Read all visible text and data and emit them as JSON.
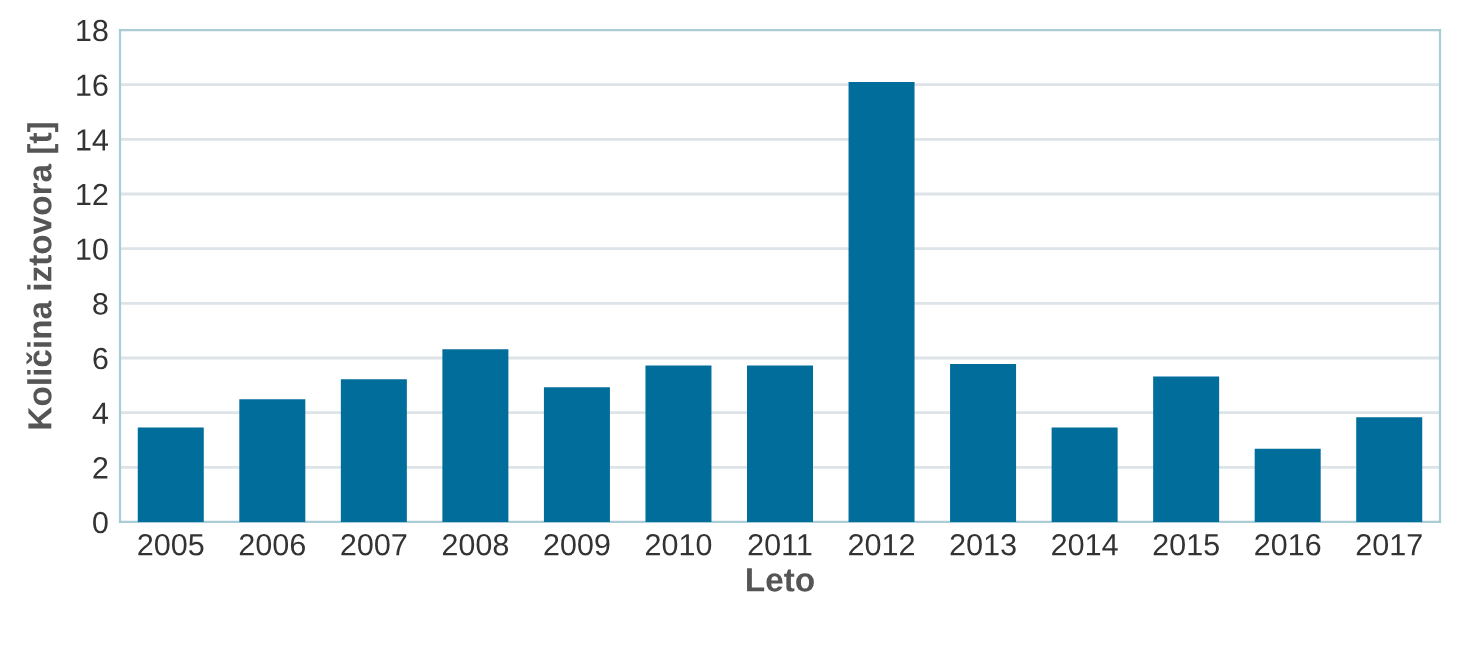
{
  "chart_data": {
    "type": "bar",
    "xlabel": "Leto",
    "ylabel": "Količina iztovora [t]",
    "categories": [
      "2005",
      "2006",
      "2007",
      "2008",
      "2009",
      "2010",
      "2011",
      "2012",
      "2013",
      "2014",
      "2015",
      "2016",
      "2017"
    ],
    "values": [
      3.46,
      4.49,
      5.22,
      6.32,
      4.93,
      5.73,
      5.73,
      16.1,
      5.78,
      3.46,
      5.32,
      2.68,
      3.83
    ],
    "color": "#006d9a",
    "ylim": [
      0,
      18
    ],
    "yticks": [
      0,
      2,
      4,
      6,
      8,
      10,
      12,
      14,
      16,
      18
    ],
    "grid": "y"
  }
}
